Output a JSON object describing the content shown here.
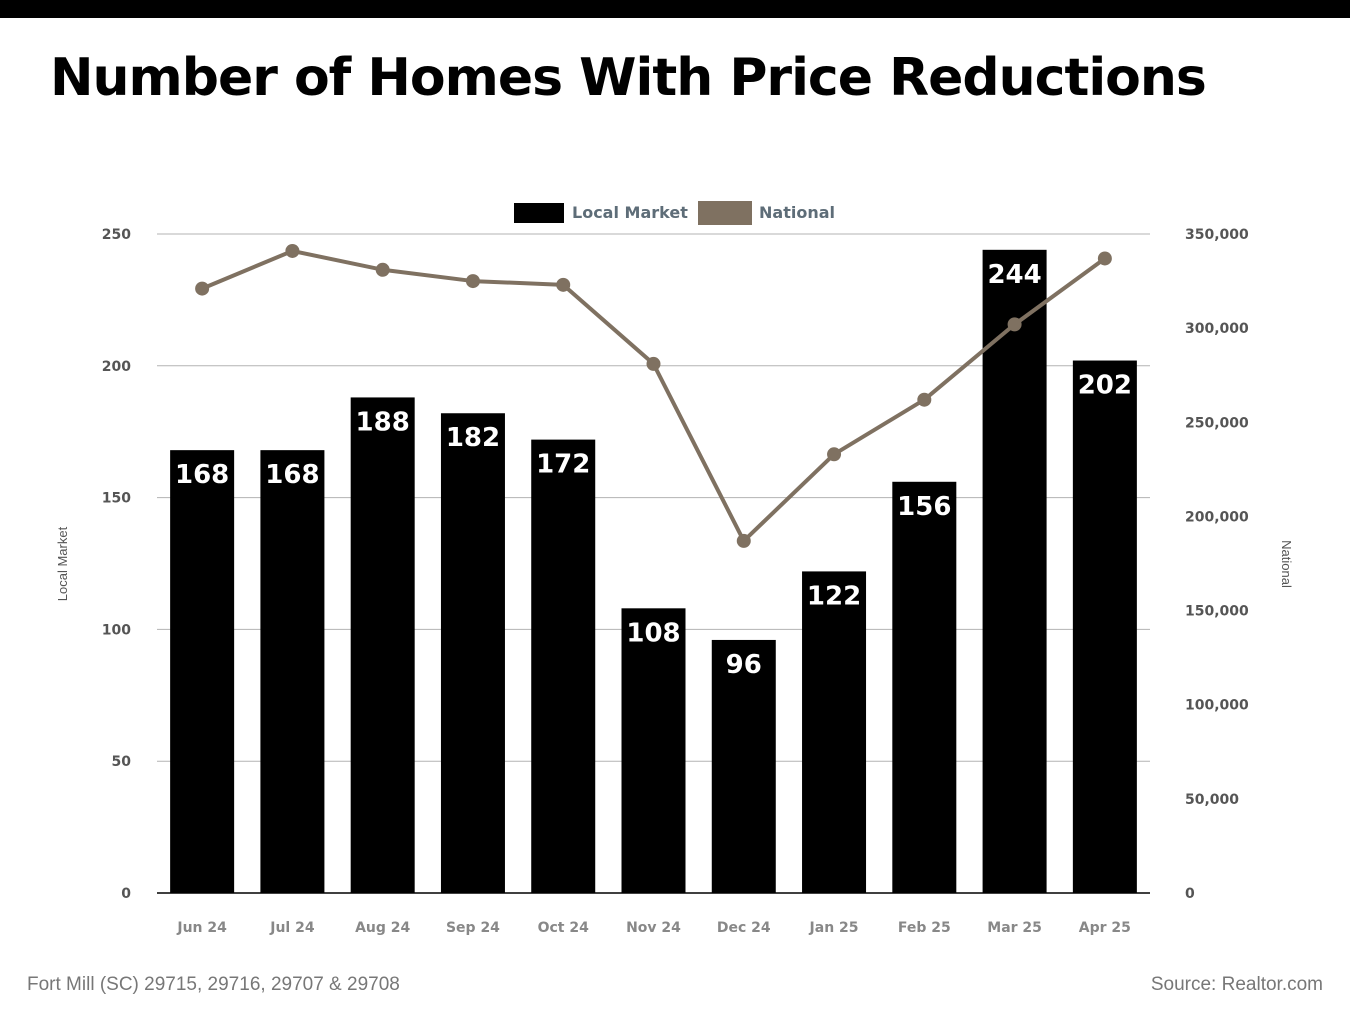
{
  "title": "Number of Homes With Price Reductions",
  "footer": {
    "location": "Fort Mill (SC) 29715, 29716, 29707 & 29708",
    "source": "Source: Realtor.com"
  },
  "colors": {
    "bar": "#000000",
    "line": "#7f7161",
    "grid": "#b3b3b3",
    "top_bar": "#000000"
  },
  "chart_data": {
    "type": "bar",
    "categories": [
      "Jun 24",
      "Jul 24",
      "Aug 24",
      "Sep 24",
      "Oct 24",
      "Nov 24",
      "Dec 24",
      "Jan 25",
      "Feb 25",
      "Mar 25",
      "Apr 25"
    ],
    "series": [
      {
        "name": "Local Market",
        "type": "bar",
        "axis": "left",
        "values": [
          168,
          168,
          188,
          182,
          172,
          108,
          96,
          122,
          156,
          244,
          202
        ]
      },
      {
        "name": "National",
        "type": "line",
        "axis": "right",
        "values": [
          321000,
          341000,
          331000,
          325000,
          323000,
          281000,
          187000,
          233000,
          262000,
          302000,
          337000
        ]
      }
    ],
    "ylabel": "Local Market",
    "y2label": "National",
    "ylim": [
      0,
      250
    ],
    "y2lim": [
      0,
      350000
    ],
    "yticks": [
      "0",
      "50",
      "100",
      "150",
      "200",
      "250"
    ],
    "y2ticks": [
      "0",
      "50,000",
      "100,000",
      "150,000",
      "200,000",
      "250,000",
      "300,000",
      "350,000"
    ],
    "legend": "top-center",
    "grid": true,
    "data_labels": true
  }
}
